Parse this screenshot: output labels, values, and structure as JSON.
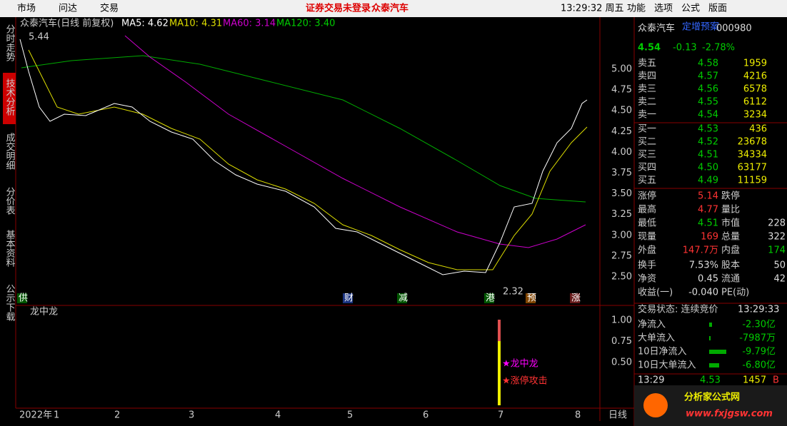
{
  "menu": [
    "市场",
    "问达",
    "交易"
  ],
  "notice": [
    "证券交易未登录",
    "众泰汽车"
  ],
  "clock": "13:29:32 周五",
  "right_menu": [
    "功能",
    "选项",
    "公式",
    "版面"
  ],
  "side_tabs": [
    "分时走势",
    "技术分析",
    "成交明细",
    "分价表",
    "基本资料",
    "公示下载"
  ],
  "chart": {
    "title": "众泰汽车(日线 前复权)",
    "ma": [
      "MA5: 4.62",
      "MA10: 4.31",
      "MA60: 3.14",
      "MA120: 3.40"
    ],
    "high_label": "5.44",
    "low_label": "2.32",
    "yticks": [
      "5.00",
      "4.75",
      "4.50",
      "4.25",
      "4.00",
      "3.75",
      "3.50",
      "3.25",
      "3.00",
      "2.75",
      "2.50"
    ],
    "events": [
      "供",
      "财",
      "减",
      "港",
      "预",
      "涨"
    ]
  },
  "indicator": {
    "title": "龙中龙",
    "yticks": [
      "1.00",
      "0.75",
      "0.50"
    ],
    "labels": [
      "★龙中龙",
      "★涨停攻击"
    ]
  },
  "xaxis": {
    "year": "2022年",
    "months": [
      "1",
      "2",
      "3",
      "4",
      "5",
      "6",
      "7",
      "8"
    ],
    "period": "日线"
  },
  "quote": {
    "name": "众泰汽车",
    "tag": "定增预案",
    "code": "000980",
    "price": "4.54",
    "change": "-0.13",
    "pct": "-2.78%",
    "book": [
      [
        "卖五",
        "4.58",
        "1959"
      ],
      [
        "卖四",
        "4.57",
        "4216"
      ],
      [
        "卖三",
        "4.56",
        "6578"
      ],
      [
        "卖二",
        "4.55",
        "6112"
      ],
      [
        "卖一",
        "4.54",
        "3234"
      ],
      [
        "买一",
        "4.53",
        "436"
      ],
      [
        "买二",
        "4.52",
        "23678"
      ],
      [
        "买三",
        "4.51",
        "34334"
      ],
      [
        "买四",
        "4.50",
        "63177"
      ],
      [
        "买五",
        "4.49",
        "11159"
      ]
    ],
    "stats": [
      [
        "涨停",
        "5.14",
        "跌停"
      ],
      [
        "最高",
        "4.77",
        "量比"
      ],
      [
        "最低",
        "4.51",
        "市值",
        "228"
      ],
      [
        "现量",
        "169",
        "总量",
        "322"
      ],
      [
        "外盘",
        "147.7万",
        "内盘",
        "174"
      ],
      [
        "换手",
        "7.53%",
        "股本",
        "50"
      ],
      [
        "净资",
        "0.45",
        "流通",
        "42"
      ],
      [
        "收益(一)",
        "-0.040",
        "PE(动)"
      ]
    ],
    "status": "交易状态: 连续竞价",
    "status_time": "13:29:33",
    "flow": [
      [
        "净流入",
        "-2.30亿"
      ],
      [
        "大单流入",
        "-7987万"
      ],
      [
        "10日净流入",
        "-9.79亿"
      ],
      [
        "10日大单流入",
        "-6.80亿"
      ]
    ],
    "tick": [
      "13:29",
      "4.53",
      "1457",
      "B"
    ]
  },
  "watermark": [
    "分析家公式网",
    "www.fxjgsw.com"
  ]
}
